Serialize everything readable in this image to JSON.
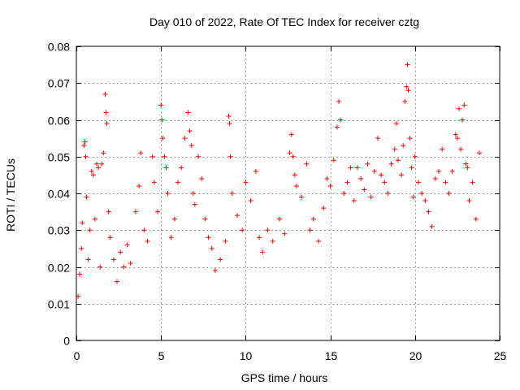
{
  "chart_data": {
    "type": "scatter",
    "title": "Day 010 of 2022, Rate Of TEC Index for receiver cztg",
    "xlabel": "GPS time / hours",
    "ylabel": "ROTI / TECUs",
    "xlim": [
      0,
      25
    ],
    "ylim": [
      0,
      0.08
    ],
    "xticks": [
      0,
      5,
      10,
      15,
      20,
      25
    ],
    "yticks": [
      0,
      0.01,
      0.02,
      0.03,
      0.04,
      0.05,
      0.06,
      0.07,
      0.08
    ],
    "grid": true,
    "marker": "+",
    "marker_color": "#ff0000",
    "series": [
      {
        "points": [
          [
            0.1,
            0.012
          ],
          [
            0.2,
            0.018
          ],
          [
            0.3,
            0.025
          ],
          [
            0.35,
            0.032
          ],
          [
            0.45,
            0.053
          ],
          [
            0.5,
            0.054
          ],
          [
            0.55,
            0.05
          ],
          [
            0.6,
            0.039
          ],
          [
            0.7,
            0.022
          ],
          [
            0.8,
            0.03
          ],
          [
            0.9,
            0.046
          ],
          [
            1.0,
            0.045
          ],
          [
            1.1,
            0.033
          ],
          [
            1.2,
            0.048
          ],
          [
            1.3,
            0.047
          ],
          [
            1.4,
            0.02
          ],
          [
            1.5,
            0.048
          ],
          [
            1.6,
            0.051
          ],
          [
            1.7,
            0.067
          ],
          [
            1.75,
            0.062
          ],
          [
            1.8,
            0.059
          ],
          [
            1.9,
            0.035
          ],
          [
            2.0,
            0.028
          ],
          [
            2.2,
            0.022
          ],
          [
            2.4,
            0.016
          ],
          [
            2.6,
            0.024
          ],
          [
            2.8,
            0.02
          ],
          [
            3.0,
            0.026
          ],
          [
            3.2,
            0.021
          ],
          [
            3.5,
            0.035
          ],
          [
            3.7,
            0.042
          ],
          [
            3.8,
            0.051
          ],
          [
            4.0,
            0.03
          ],
          [
            4.2,
            0.027
          ],
          [
            4.5,
            0.05
          ],
          [
            4.6,
            0.043
          ],
          [
            4.8,
            0.035
          ],
          [
            5.0,
            0.064
          ],
          [
            5.05,
            0.06
          ],
          [
            5.1,
            0.055
          ],
          [
            5.2,
            0.05
          ],
          [
            5.3,
            0.047
          ],
          [
            5.4,
            0.04
          ],
          [
            5.6,
            0.028
          ],
          [
            5.8,
            0.033
          ],
          [
            6.0,
            0.043
          ],
          [
            6.2,
            0.047
          ],
          [
            6.4,
            0.055
          ],
          [
            6.6,
            0.062
          ],
          [
            6.7,
            0.057
          ],
          [
            6.8,
            0.053
          ],
          [
            6.9,
            0.04
          ],
          [
            7.0,
            0.037
          ],
          [
            7.2,
            0.05
          ],
          [
            7.4,
            0.044
          ],
          [
            7.6,
            0.033
          ],
          [
            7.8,
            0.028
          ],
          [
            8.0,
            0.025
          ],
          [
            8.2,
            0.019
          ],
          [
            8.5,
            0.022
          ],
          [
            8.8,
            0.027
          ],
          [
            9.0,
            0.061
          ],
          [
            9.05,
            0.059
          ],
          [
            9.1,
            0.05
          ],
          [
            9.2,
            0.04
          ],
          [
            9.5,
            0.034
          ],
          [
            9.8,
            0.03
          ],
          [
            10.0,
            0.043
          ],
          [
            10.3,
            0.038
          ],
          [
            10.6,
            0.046
          ],
          [
            10.8,
            0.028
          ],
          [
            11.0,
            0.024
          ],
          [
            11.3,
            0.03
          ],
          [
            11.6,
            0.027
          ],
          [
            12.0,
            0.033
          ],
          [
            12.3,
            0.029
          ],
          [
            12.6,
            0.051
          ],
          [
            12.7,
            0.056
          ],
          [
            12.8,
            0.05
          ],
          [
            12.9,
            0.045
          ],
          [
            13.0,
            0.042
          ],
          [
            13.3,
            0.039
          ],
          [
            13.6,
            0.048
          ],
          [
            13.8,
            0.03
          ],
          [
            14.0,
            0.033
          ],
          [
            14.3,
            0.027
          ],
          [
            14.6,
            0.036
          ],
          [
            14.8,
            0.044
          ],
          [
            15.0,
            0.042
          ],
          [
            15.2,
            0.049
          ],
          [
            15.4,
            0.058
          ],
          [
            15.5,
            0.065
          ],
          [
            15.6,
            0.06
          ],
          [
            15.8,
            0.04
          ],
          [
            16.0,
            0.043
          ],
          [
            16.2,
            0.047
          ],
          [
            16.4,
            0.038
          ],
          [
            16.6,
            0.047
          ],
          [
            16.8,
            0.044
          ],
          [
            17.0,
            0.041
          ],
          [
            17.2,
            0.048
          ],
          [
            17.4,
            0.039
          ],
          [
            17.6,
            0.046
          ],
          [
            17.8,
            0.055
          ],
          [
            18.0,
            0.045
          ],
          [
            18.2,
            0.043
          ],
          [
            18.4,
            0.04
          ],
          [
            18.6,
            0.048
          ],
          [
            18.8,
            0.052
          ],
          [
            18.9,
            0.059
          ],
          [
            19.0,
            0.049
          ],
          [
            19.2,
            0.045
          ],
          [
            19.3,
            0.053
          ],
          [
            19.4,
            0.065
          ],
          [
            19.5,
            0.069
          ],
          [
            19.55,
            0.075
          ],
          [
            19.6,
            0.068
          ],
          [
            19.7,
            0.055
          ],
          [
            19.8,
            0.047
          ],
          [
            19.9,
            0.039
          ],
          [
            20.0,
            0.05
          ],
          [
            20.2,
            0.043
          ],
          [
            20.4,
            0.04
          ],
          [
            20.6,
            0.038
          ],
          [
            20.8,
            0.035
          ],
          [
            21.0,
            0.031
          ],
          [
            21.2,
            0.044
          ],
          [
            21.4,
            0.046
          ],
          [
            21.6,
            0.052
          ],
          [
            21.8,
            0.043
          ],
          [
            22.0,
            0.04
          ],
          [
            22.2,
            0.046
          ],
          [
            22.4,
            0.056
          ],
          [
            22.5,
            0.055
          ],
          [
            22.6,
            0.063
          ],
          [
            22.7,
            0.052
          ],
          [
            22.8,
            0.06
          ],
          [
            22.9,
            0.064
          ],
          [
            23.0,
            0.048
          ],
          [
            23.1,
            0.047
          ],
          [
            23.2,
            0.038
          ],
          [
            23.4,
            0.043
          ],
          [
            23.6,
            0.033
          ],
          [
            23.8,
            0.051
          ]
        ]
      }
    ]
  }
}
